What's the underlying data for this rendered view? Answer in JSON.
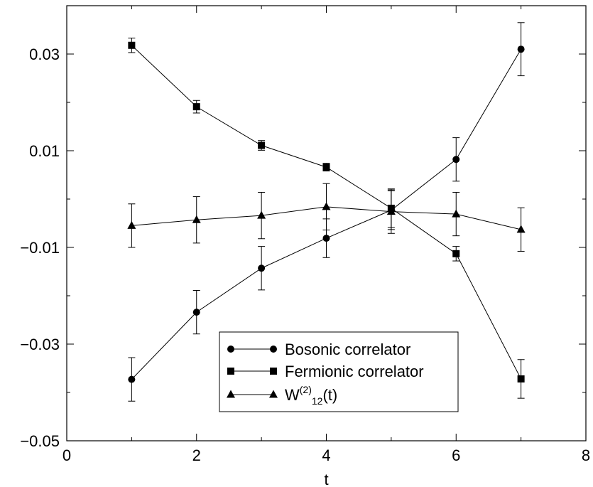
{
  "chart_data": {
    "type": "line",
    "xlabel": "t",
    "ylabel": "",
    "xlim": [
      0,
      8
    ],
    "ylim": [
      -0.05,
      0.04
    ],
    "x_ticks": [
      0,
      2,
      4,
      6,
      8
    ],
    "y_ticks": [
      -0.05,
      -0.03,
      -0.01,
      0.01,
      0.03
    ],
    "x_tick_labels": [
      "0",
      "2",
      "4",
      "6",
      "8"
    ],
    "y_tick_labels": [
      "−0.05",
      "−0.03",
      "−0.01",
      "0.01",
      "0.03"
    ],
    "grid": false,
    "legend_position": "bottom-center",
    "series": [
      {
        "name": "Bosonic correlator",
        "marker": "circle",
        "x": [
          1,
          2,
          3,
          4,
          5,
          6,
          7
        ],
        "y": [
          -0.0373,
          -0.0234,
          -0.0143,
          -0.0081,
          -0.0023,
          0.0082,
          0.031
        ],
        "err": [
          0.0045,
          0.0045,
          0.0045,
          0.004,
          0.004,
          0.0045,
          0.0055
        ]
      },
      {
        "name": "Fermionic correlator",
        "marker": "square",
        "x": [
          1,
          2,
          3,
          4,
          5,
          6,
          7
        ],
        "y": [
          0.0318,
          0.0191,
          0.0111,
          0.0066,
          -0.0019,
          -0.0113,
          -0.0372
        ],
        "err": [
          0.0015,
          0.0013,
          0.001,
          0.0008,
          0.004,
          0.0015,
          0.004
        ]
      },
      {
        "name_base": "W",
        "name_sup": "(2)",
        "name_sub": "12",
        "name_suffix": "(t)",
        "marker": "triangle",
        "x": [
          1,
          2,
          3,
          4,
          5,
          6,
          7
        ],
        "y": [
          -0.0055,
          -0.0043,
          -0.0034,
          -0.0016,
          -0.0026,
          -0.0031,
          -0.0063
        ],
        "err": [
          0.0045,
          0.0048,
          0.0048,
          0.0048,
          0.0045,
          0.0045,
          0.0045
        ]
      }
    ]
  }
}
